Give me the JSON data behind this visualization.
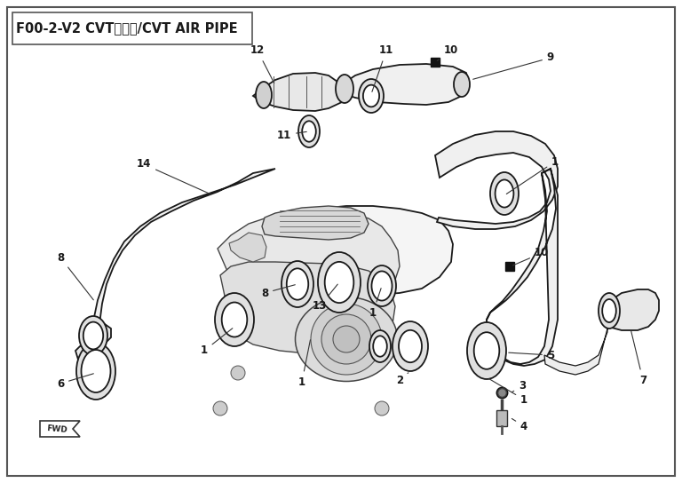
{
  "title": "F00-2-V2 CVT通风管/CVT AIR PIPE",
  "bg_color": "#ffffff",
  "border_color": "#666666",
  "line_color": "#1a1a1a",
  "title_fontsize": 10.5,
  "label_fontsize": 8.5,
  "fig_width": 7.68,
  "fig_height": 5.44
}
